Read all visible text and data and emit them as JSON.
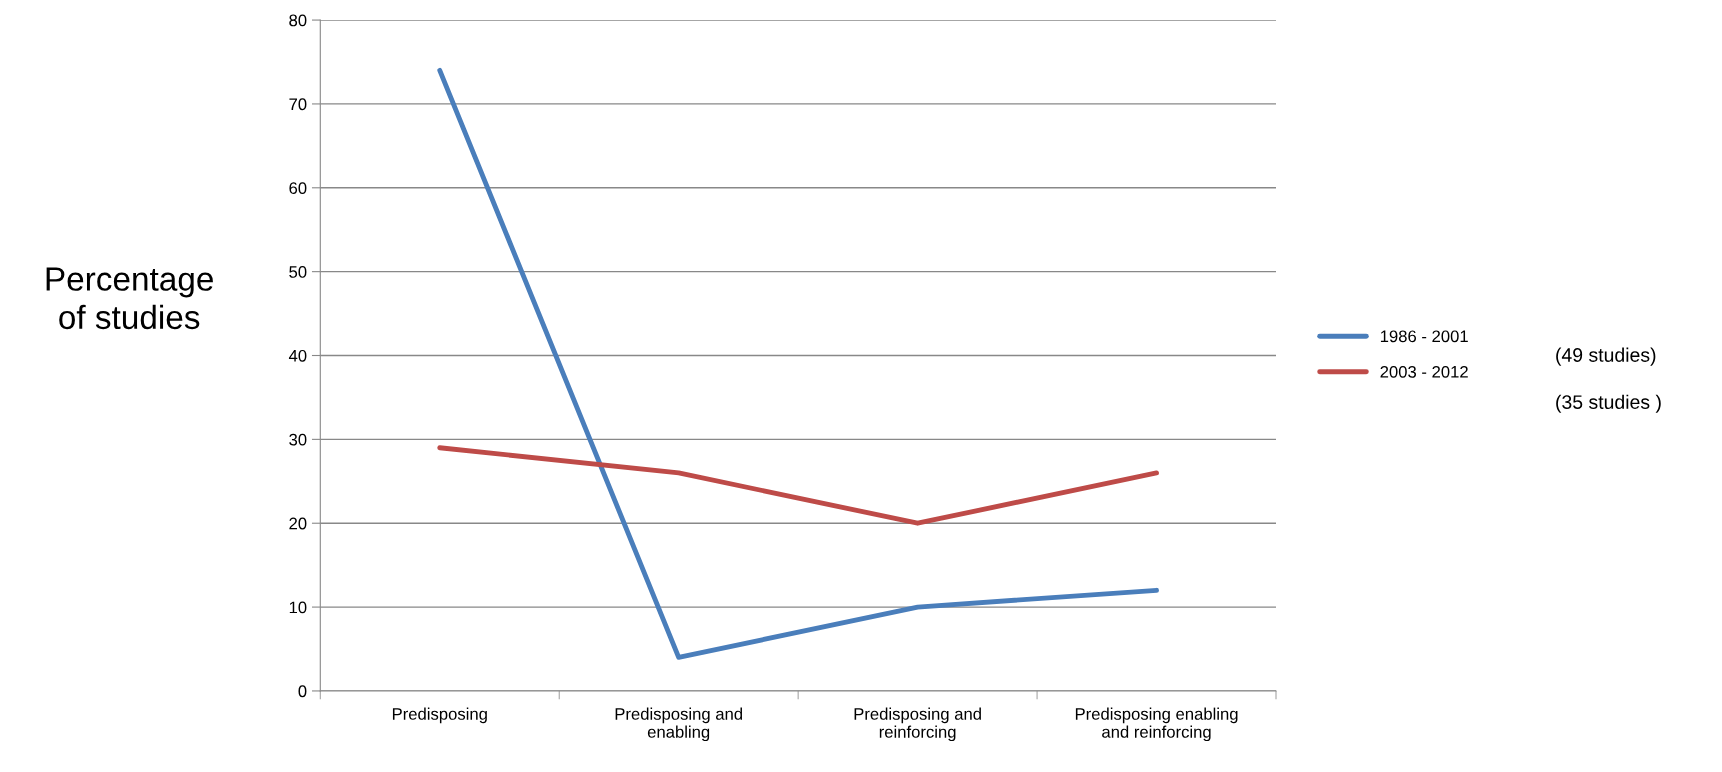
{
  "chart_data": {
    "type": "line",
    "ylabel": "Percentage of studies",
    "categories": [
      "Predisposing",
      "Predisposing and enabling",
      "Predisposing and reinforcing",
      "Predisposing enabling and reinforcing"
    ],
    "series": [
      {
        "name": "1986 - 2001",
        "color": "#4a7ebb",
        "values": [
          74,
          4,
          10,
          12
        ]
      },
      {
        "name": "2003 - 2012",
        "color": "#be4b48",
        "values": [
          29,
          26,
          20,
          26
        ]
      }
    ],
    "ylim": [
      0,
      80
    ],
    "yticks": [
      0,
      10,
      20,
      30,
      40,
      50,
      60,
      70,
      80
    ],
    "grid": "y",
    "legend": "right",
    "marker": "none",
    "line_style": "solid",
    "annotations": [
      "(49 studies)",
      "(35 studies )"
    ]
  }
}
